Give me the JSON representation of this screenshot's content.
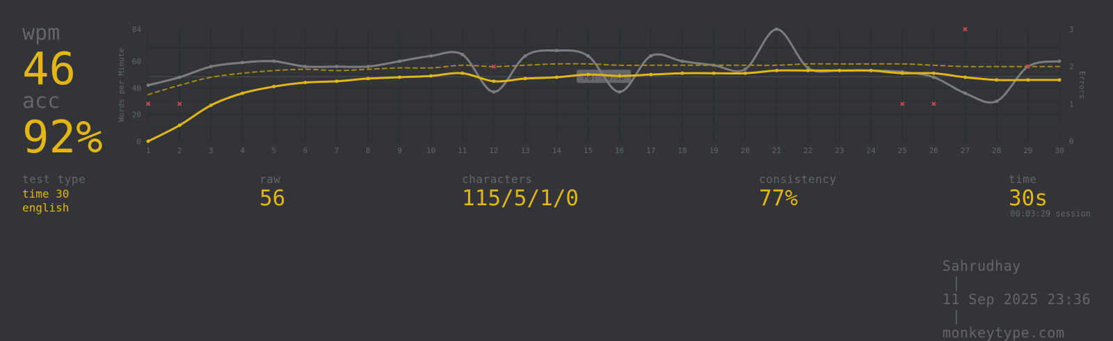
{
  "left": {
    "wpm_label": "wpm",
    "wpm_value": "46",
    "acc_label": "acc",
    "acc_value": "92%"
  },
  "stats": {
    "test_type_label": "test type",
    "test_type_mode": "time 30",
    "test_type_language": "english",
    "raw_label": "raw",
    "raw_value": "56",
    "characters_label": "characters",
    "characters_value": "115/5/1/0",
    "consistency_label": "consistency",
    "consistency_value": "77%",
    "time_label": "time",
    "time_value": "30s",
    "session_value": "00:03:29 session"
  },
  "footer": {
    "user": "Sahrudhay",
    "separator": "|",
    "datetime": "11 Sep 2025 23:36",
    "site": "monkeytype.com"
  },
  "colors": {
    "background": "#323437",
    "accent": "#e2b714",
    "sub": "#646669",
    "raw_line": "#7b7d80",
    "error": "#ca4754"
  },
  "chart_data": {
    "type": "line",
    "x": [
      1,
      2,
      3,
      4,
      5,
      6,
      7,
      8,
      9,
      10,
      11,
      12,
      13,
      14,
      15,
      16,
      17,
      18,
      19,
      20,
      21,
      22,
      23,
      24,
      25,
      26,
      27,
      28,
      29,
      30
    ],
    "xlim": [
      1,
      30
    ],
    "ylabel": "Words per Minute",
    "ylim": [
      0,
      84
    ],
    "yticks": [
      0,
      20,
      40,
      60,
      84
    ],
    "y2label": "Errors",
    "y2lim": [
      0,
      3
    ],
    "y2ticks": [
      0,
      1,
      2,
      3
    ],
    "grid": true,
    "series": [
      {
        "key": "wpm",
        "values": [
          0,
          12,
          27,
          36,
          41,
          44,
          45,
          47,
          48,
          49,
          51,
          45,
          47,
          48,
          50,
          49,
          50,
          51,
          51,
          51,
          53,
          53,
          53,
          53,
          51,
          51,
          48,
          46,
          46,
          46
        ]
      },
      {
        "key": "raw",
        "values": [
          42,
          48,
          56,
          59,
          60,
          56,
          56,
          56,
          60,
          64,
          65,
          37,
          64,
          68,
          64,
          37,
          64,
          60,
          57,
          54,
          84,
          55,
          53,
          53,
          52,
          48,
          36,
          30,
          56,
          60
        ]
      },
      {
        "key": "burst_avg",
        "style": "dashed",
        "values": [
          35,
          42,
          48,
          51,
          53,
          54,
          53,
          54,
          55,
          55,
          57,
          56,
          57,
          58,
          58,
          57,
          57,
          57,
          57,
          57,
          57,
          58,
          58,
          58,
          58,
          57,
          56,
          56,
          56,
          56
        ]
      }
    ],
    "errors": {
      "axis": "y2",
      "x": [
        1,
        2,
        12,
        25,
        26,
        27,
        29
      ],
      "values": [
        1,
        1,
        2,
        1,
        1,
        3,
        2
      ]
    },
    "annotation": {
      "text": "PB: 48.38",
      "y": 48.38
    }
  }
}
